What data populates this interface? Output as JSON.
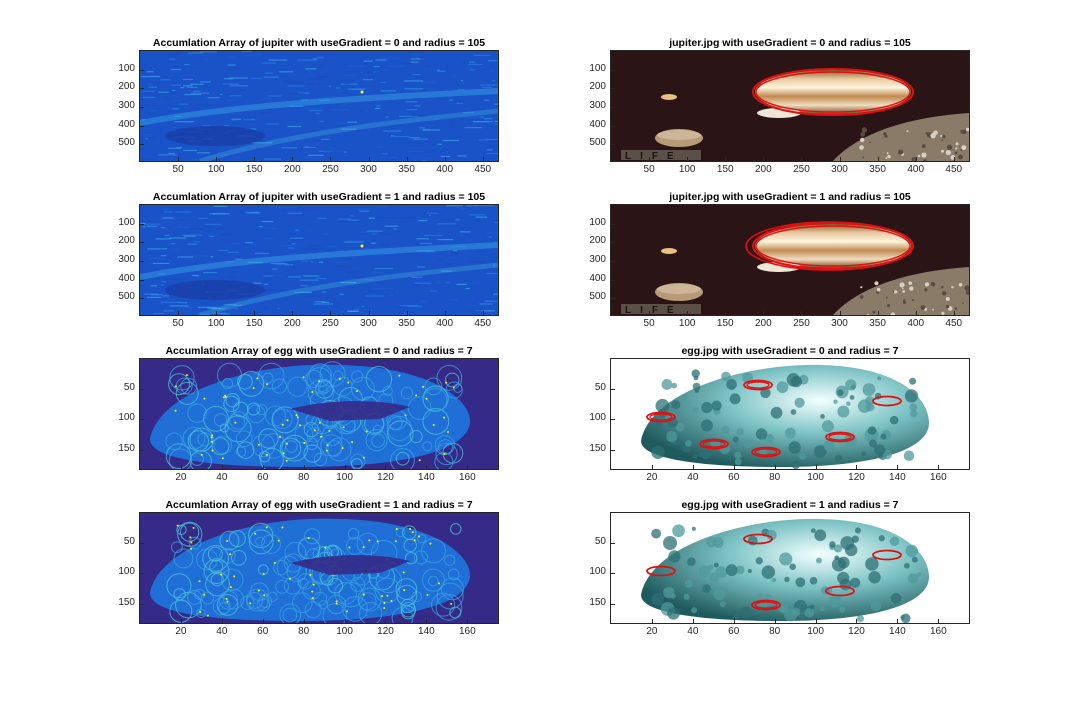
{
  "figure": {
    "panels": [
      {
        "title": "Accumlation Array of jupiter with useGradient = 0 and radius = 105",
        "kind": "accum-jupiter",
        "xticks": [
          "50",
          "100",
          "150",
          "200",
          "250",
          "300",
          "350",
          "400",
          "450"
        ],
        "xtick_values": [
          50,
          100,
          150,
          200,
          250,
          300,
          350,
          400,
          450
        ],
        "yticks": [
          "100",
          "200",
          "300",
          "400",
          "500"
        ],
        "ytick_values": [
          100,
          200,
          300,
          400,
          500
        ],
        "xlim": [
          0,
          470
        ],
        "ylim": [
          0,
          590
        ]
      },
      {
        "title": "jupiter.jpg with useGradient = 0 and radius = 105",
        "kind": "image-jupiter",
        "xticks": [
          "50",
          "100",
          "150",
          "200",
          "250",
          "300",
          "350",
          "400",
          "450"
        ],
        "xtick_values": [
          50,
          100,
          150,
          200,
          250,
          300,
          350,
          400,
          450
        ],
        "yticks": [
          "100",
          "200",
          "300",
          "400",
          "500"
        ],
        "ytick_values": [
          100,
          200,
          300,
          400,
          500
        ],
        "xlim": [
          0,
          470
        ],
        "ylim": [
          0,
          590
        ]
      },
      {
        "title": "Accumlation Array of jupiter with useGradient = 1 and radius = 105",
        "kind": "accum-jupiter",
        "xticks": [
          "50",
          "100",
          "150",
          "200",
          "250",
          "300",
          "350",
          "400",
          "450"
        ],
        "xtick_values": [
          50,
          100,
          150,
          200,
          250,
          300,
          350,
          400,
          450
        ],
        "yticks": [
          "100",
          "200",
          "300",
          "400",
          "500"
        ],
        "ytick_values": [
          100,
          200,
          300,
          400,
          500
        ],
        "xlim": [
          0,
          470
        ],
        "ylim": [
          0,
          590
        ]
      },
      {
        "title": "jupiter.jpg with useGradient = 1 and radius = 105",
        "kind": "image-jupiter",
        "xticks": [
          "50",
          "100",
          "150",
          "200",
          "250",
          "300",
          "350",
          "400",
          "450"
        ],
        "xtick_values": [
          50,
          100,
          150,
          200,
          250,
          300,
          350,
          400,
          450
        ],
        "yticks": [
          "100",
          "200",
          "300",
          "400",
          "500"
        ],
        "ytick_values": [
          100,
          200,
          300,
          400,
          500
        ],
        "xlim": [
          0,
          470
        ],
        "ylim": [
          0,
          590
        ]
      },
      {
        "title": "Accumlation Array of egg with useGradient = 0 and radius = 7",
        "kind": "accum-egg",
        "xticks": [
          "20",
          "40",
          "60",
          "80",
          "100",
          "120",
          "140",
          "160"
        ],
        "xtick_values": [
          20,
          40,
          60,
          80,
          100,
          120,
          140,
          160
        ],
        "yticks": [
          "50",
          "100",
          "150"
        ],
        "ytick_values": [
          50,
          100,
          150
        ],
        "xlim": [
          0,
          175
        ],
        "ylim": [
          0,
          182
        ]
      },
      {
        "title": "egg.jpg with useGradient = 0 and radius = 7",
        "kind": "image-egg",
        "xticks": [
          "20",
          "40",
          "60",
          "80",
          "100",
          "120",
          "140",
          "160"
        ],
        "xtick_values": [
          20,
          40,
          60,
          80,
          100,
          120,
          140,
          160
        ],
        "yticks": [
          "50",
          "100",
          "150"
        ],
        "ytick_values": [
          50,
          100,
          150
        ],
        "xlim": [
          0,
          175
        ],
        "ylim": [
          0,
          182
        ]
      },
      {
        "title": "Accumlation Array of egg with useGradient = 1 and radius = 7",
        "kind": "accum-egg",
        "xticks": [
          "20",
          "40",
          "60",
          "80",
          "100",
          "120",
          "140",
          "160"
        ],
        "xtick_values": [
          20,
          40,
          60,
          80,
          100,
          120,
          140,
          160
        ],
        "yticks": [
          "50",
          "100",
          "150"
        ],
        "ytick_values": [
          50,
          100,
          150
        ],
        "xlim": [
          0,
          175
        ],
        "ylim": [
          0,
          182
        ]
      },
      {
        "title": "egg.jpg with useGradient = 1 and radius = 7",
        "kind": "image-egg",
        "xticks": [
          "20",
          "40",
          "60",
          "80",
          "100",
          "120",
          "140",
          "160"
        ],
        "xtick_values": [
          20,
          40,
          60,
          80,
          100,
          120,
          140,
          160
        ],
        "yticks": [
          "50",
          "100",
          "150"
        ],
        "ytick_values": [
          50,
          100,
          150
        ],
        "xlim": [
          0,
          175
        ],
        "ylim": [
          0,
          182
        ]
      }
    ],
    "image_watermark": "LIFE",
    "colors": {
      "accum_background": "#352a87",
      "accum_mid": "#1f6fd6",
      "accum_high": "#f9fb0e",
      "detected_circle": "#e01010",
      "space": "#2a1416"
    }
  }
}
